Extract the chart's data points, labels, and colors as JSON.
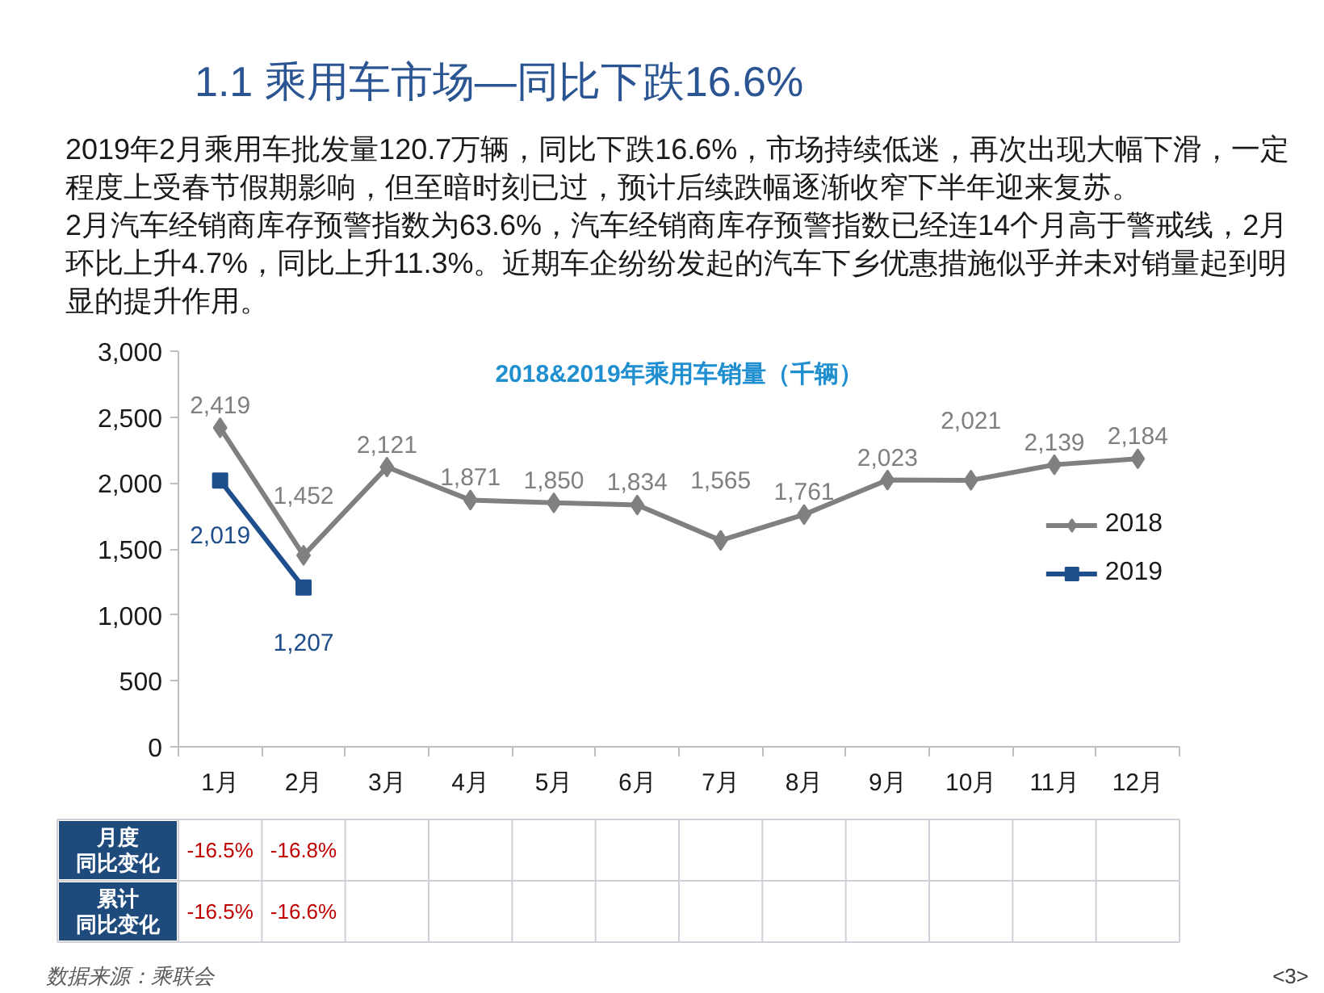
{
  "chart_data": {
    "type": "line",
    "title": "1.1 乘用车市场—同比下跌16.6%",
    "subtitle": "2018&2019年乘用车销量（千辆）",
    "categories": [
      "1月",
      "2月",
      "3月",
      "4月",
      "5月",
      "6月",
      "7月",
      "8月",
      "9月",
      "10月",
      "11月",
      "12月"
    ],
    "series": [
      {
        "name": "2018",
        "color": "#808080",
        "marker": "diamond",
        "values": [
          2419,
          1452,
          2121,
          1871,
          1850,
          1834,
          1565,
          1761,
          2023,
          2021,
          2139,
          2184
        ],
        "value_labels": [
          "2,419",
          "1,452",
          "2,121",
          "1,871",
          "1,850",
          "1,834",
          "1,565",
          "1,761",
          "2,023",
          "2,021",
          "2,139",
          "2,184"
        ]
      },
      {
        "name": "2019",
        "color": "#1f4e8c",
        "marker": "square",
        "values": [
          2019,
          1207,
          null,
          null,
          null,
          null,
          null,
          null,
          null,
          null,
          null,
          null
        ],
        "value_labels": [
          "2,019",
          "1,207",
          null,
          null,
          null,
          null,
          null,
          null,
          null,
          null,
          null,
          null
        ]
      }
    ],
    "ylim": [
      0,
      3000
    ],
    "yticks": [
      0,
      500,
      {
        "value": 1000,
        "label": "1,000"
      },
      {
        "value": 1500,
        "label": "1,500"
      },
      {
        "value": 2000,
        "label": "2,000"
      },
      {
        "value": 2500,
        "label": "2,500"
      },
      {
        "value": 3000,
        "label": "3,000"
      }
    ],
    "grid": false,
    "legend": "right",
    "line_style": "solid",
    "annotations": [
      "2019年2月乘用车批发量120.7万辆，同比下跌16.6%，市场持续低迷，再次出现大幅下滑，一定程度上受春节假期影响，但至暗时刻已过，预计后续跌幅逐渐收窄下半年迎来复苏。",
      "2月汽车经销商库存预警指数为63.6%，汽车经销商库存预警指数已经连14个月高于警戒线，2月环比上升4.7%，同比上升11.3%。近期车企纷纷发起的汽车下乡优惠措施似乎并未对销量起到明显的提升作用。",
      "月度同比变化",
      "-16.5%",
      "-16.8%",
      "累计同比变化",
      "-16.5%",
      "-16.6%",
      "数据来源：乘联会",
      "<3>"
    ]
  }
}
